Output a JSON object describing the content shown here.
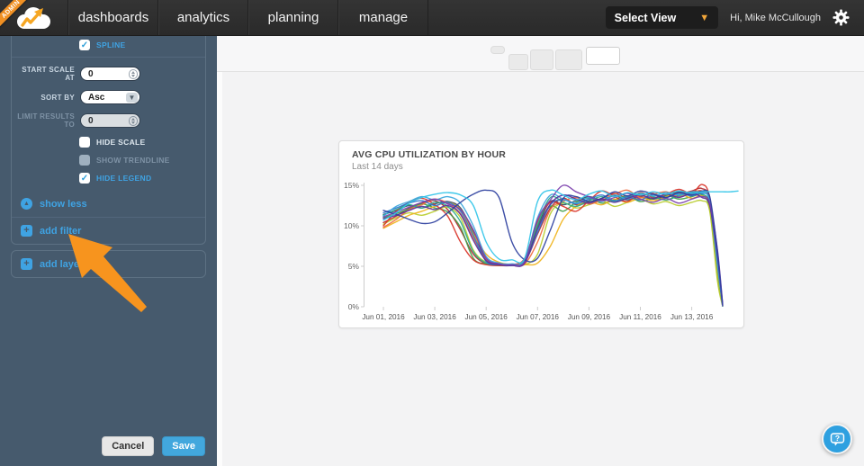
{
  "nav": {
    "ribbon": "ADMIN",
    "items": [
      {
        "label": "dashboards"
      },
      {
        "label": "analytics"
      },
      {
        "label": "planning"
      },
      {
        "label": "manage"
      }
    ],
    "select_view_label": "Select View",
    "greeting": "Hi, Mike McCullough"
  },
  "sidebar": {
    "spline": {
      "label": "SPLINE",
      "checked": true
    },
    "fields": [
      {
        "label": "START SCALE AT",
        "value": "0",
        "disabled": false
      },
      {
        "label": "SORT BY",
        "value": "Asc",
        "disabled": false
      },
      {
        "label": "LIMIT RESULTS TO",
        "value": "0",
        "disabled": true
      }
    ],
    "checkboxes": [
      {
        "label": "HIDE SCALE",
        "checked": false,
        "disabled": false
      },
      {
        "label": "SHOW TRENDLINE",
        "checked": false,
        "disabled": true
      },
      {
        "label": "HIDE LEGEND",
        "checked": true,
        "disabled": false
      }
    ],
    "show_less_label": "show less",
    "add_filter_label": "add filter",
    "add_layer_label": "add layer",
    "cancel_label": "Cancel",
    "save_label": "Save"
  },
  "chart_card": {
    "title": "AVG CPU UTILIZATION BY HOUR",
    "subtitle": "Last 14 days"
  },
  "chart_data": {
    "type": "line",
    "title": "AVG CPU UTILIZATION BY HOUR",
    "subtitle": "Last 14 days",
    "legend": "hidden",
    "grid": "off",
    "ylim": [
      0,
      15
    ],
    "y_ticks": [
      0,
      5,
      10,
      15
    ],
    "y_tick_labels": [
      "0%",
      "5%",
      "10%",
      "15%"
    ],
    "x_unit": "days since Jun 01, 2016",
    "x_tick_days": [
      0,
      2,
      4,
      6,
      8,
      10,
      12
    ],
    "x_tick_labels": [
      "Jun 01, 2016",
      "Jun 03, 2016",
      "Jun 05, 2016",
      "Jun 07, 2016",
      "Jun 09, 2016",
      "Jun 11, 2016",
      "Jun 13, 2016"
    ],
    "x_days": [
      0,
      0.5,
      1,
      1.5,
      2,
      2.5,
      3,
      3.5,
      4,
      4.5,
      5,
      5.5,
      6,
      6.5,
      7,
      7.5,
      8,
      8.5,
      9,
      9.5,
      10,
      10.5,
      11,
      11.5,
      12,
      12.4,
      12.7,
      13,
      13.2,
      13.5,
      13.8
    ],
    "unit": "% avg cpu utilization",
    "series": [
      {
        "color": "#34495e",
        "values": [
          11.4,
          11.9,
          12.5,
          12.2,
          12.7,
          13.0,
          12.2,
          9.2,
          5.9,
          5.3,
          5.2,
          5.5,
          9.9,
          13.0,
          12.6,
          13.1,
          13.6,
          13.2,
          13.7,
          13.2,
          13.6,
          13.3,
          13.7,
          14.2,
          13.9,
          14.2,
          13.3,
          5.6,
          0.1,
          null,
          null
        ]
      },
      {
        "color": "#b3282d",
        "values": [
          10.4,
          11.2,
          12.2,
          12.8,
          13.1,
          12.0,
          9.5,
          6.5,
          5.3,
          5.1,
          5.1,
          5.5,
          9.0,
          12.2,
          13.4,
          12.6,
          12.9,
          13.4,
          14.0,
          13.4,
          13.7,
          14.0,
          13.2,
          13.8,
          14.3,
          14.6,
          13.2,
          5.5,
          0.1,
          null,
          null
        ]
      },
      {
        "color": "#41a048",
        "values": [
          11.0,
          11.5,
          12.1,
          12.7,
          12.2,
          11.7,
          9.8,
          6.0,
          5.3,
          5.1,
          5.2,
          5.6,
          9.8,
          12.4,
          11.8,
          12.9,
          13.4,
          12.8,
          13.2,
          13.7,
          13.0,
          13.4,
          13.8,
          13.3,
          13.6,
          13.8,
          12.0,
          3.8,
          0.1,
          null,
          null
        ]
      },
      {
        "color": "#b8cc2d",
        "values": [
          10.2,
          11.0,
          11.6,
          11.3,
          11.8,
          12.3,
          11.0,
          7.0,
          5.5,
          5.2,
          5.1,
          5.2,
          6.5,
          11.5,
          12.8,
          12.2,
          12.6,
          13.1,
          12.4,
          12.9,
          13.3,
          12.7,
          13.0,
          12.5,
          12.9,
          13.1,
          11.8,
          3.2,
          0.1,
          null,
          null
        ]
      },
      {
        "color": "#f0b31a",
        "values": [
          9.7,
          10.5,
          11.3,
          11.8,
          12.4,
          12.9,
          12.0,
          9.0,
          6.5,
          5.5,
          5.2,
          5.2,
          5.4,
          7.5,
          10.8,
          12.4,
          13.0,
          12.6,
          13.3,
          12.9,
          13.5,
          13.1,
          13.6,
          14.0,
          13.4,
          13.7,
          12.4,
          4.6,
          0.1,
          null,
          null
        ]
      },
      {
        "color": "#ee6b3f",
        "values": [
          9.8,
          10.8,
          12.0,
          12.6,
          13.3,
          12.8,
          11.5,
          8.5,
          5.8,
          5.2,
          5.1,
          5.3,
          8.0,
          12.0,
          13.0,
          13.5,
          12.7,
          13.2,
          13.9,
          14.4,
          13.5,
          13.9,
          14.2,
          13.6,
          14.1,
          14.3,
          13.0,
          5.8,
          0.2,
          null,
          null
        ]
      },
      {
        "color": "#d93328",
        "values": [
          10.0,
          11.8,
          12.9,
          13.4,
          12.6,
          11.2,
          8.0,
          5.8,
          5.2,
          5.1,
          5.2,
          6.0,
          10.5,
          12.9,
          12.4,
          11.8,
          13.1,
          14.3,
          13.6,
          13.0,
          14.1,
          13.5,
          13.9,
          14.5,
          14.0,
          15.1,
          13.5,
          6.0,
          0.1,
          null,
          null
        ]
      },
      {
        "color": "#2aa98c",
        "values": [
          11.3,
          12.0,
          12.6,
          12.2,
          12.9,
          12.4,
          10.5,
          6.8,
          5.4,
          5.2,
          5.1,
          5.8,
          10.2,
          13.5,
          12.9,
          12.4,
          13.1,
          13.6,
          13.0,
          13.5,
          14.0,
          13.6,
          13.2,
          13.7,
          14.1,
          13.9,
          12.6,
          5.0,
          0.1,
          null,
          null
        ]
      },
      {
        "color": "#2d74cc",
        "values": [
          11.6,
          12.2,
          12.8,
          13.1,
          12.5,
          12.9,
          11.8,
          8.8,
          5.6,
          5.2,
          5.1,
          5.5,
          9.2,
          12.6,
          13.2,
          12.7,
          13.3,
          13.8,
          13.1,
          13.6,
          13.2,
          13.9,
          13.5,
          14.0,
          13.7,
          14.0,
          13.0,
          5.2,
          0.1,
          null,
          null
        ]
      },
      {
        "color": "#38a6dc",
        "values": [
          11.2,
          12.4,
          13.0,
          13.6,
          13.2,
          13.6,
          12.8,
          10.0,
          6.2,
          5.4,
          5.3,
          5.7,
          11.0,
          13.8,
          13.3,
          12.8,
          13.5,
          13.0,
          13.8,
          13.3,
          14.0,
          13.7,
          14.1,
          13.8,
          14.2,
          14.1,
          13.1,
          5.4,
          0.2,
          null,
          null
        ]
      },
      {
        "color": "#5a2f9b",
        "values": [
          10.9,
          11.3,
          11.9,
          12.4,
          12.0,
          12.5,
          11.4,
          8.2,
          5.7,
          5.2,
          5.1,
          5.4,
          9.6,
          12.7,
          13.8,
          13.3,
          12.8,
          13.3,
          12.9,
          13.4,
          13.8,
          13.4,
          13.9,
          13.5,
          14.0,
          13.5,
          12.5,
          6.2,
          0.2,
          null,
          null
        ]
      },
      {
        "color": "#7b3fad",
        "values": [
          11.1,
          11.7,
          12.3,
          12.9,
          13.3,
          12.7,
          12.0,
          9.5,
          6.0,
          5.3,
          5.2,
          5.6,
          10.8,
          13.2,
          15.0,
          14.2,
          13.6,
          13.1,
          13.5,
          14.0,
          13.3,
          12.9,
          13.4,
          12.8,
          13.3,
          13.6,
          12.8,
          7.0,
          0.4,
          null,
          null
        ]
      },
      {
        "color": "#2c3f9e",
        "values": [
          11.9,
          11.4,
          10.8,
          10.3,
          10.5,
          11.6,
          12.9,
          13.9,
          14.4,
          13.5,
          8.0,
          5.8,
          6.0,
          9.5,
          13.4,
          13.6,
          13.0,
          13.4,
          14.2,
          13.7,
          14.3,
          13.9,
          13.5,
          14.1,
          13.8,
          14.3,
          13.6,
          6.8,
          0.3,
          null,
          null
        ]
      },
      {
        "color": "#31c4e8",
        "values": [
          10.7,
          11.6,
          12.8,
          13.5,
          13.9,
          14.1,
          13.8,
          12.5,
          8.0,
          5.9,
          5.8,
          6.0,
          13.0,
          14.4,
          13.8,
          13.2,
          13.9,
          14.3,
          13.6,
          14.1,
          13.8,
          14.2,
          13.9,
          14.3,
          14.0,
          14.2,
          14.2,
          14.2,
          14.2,
          14.2,
          14.3
        ]
      }
    ]
  },
  "help": {
    "label": "?"
  },
  "colors": {
    "accent_blue": "#3fa3e3",
    "arrow_orange": "#f7941e",
    "save_blue": "#42a7dd",
    "nav_dark": "#2d2d2d",
    "sidebar": "#465a6d"
  }
}
